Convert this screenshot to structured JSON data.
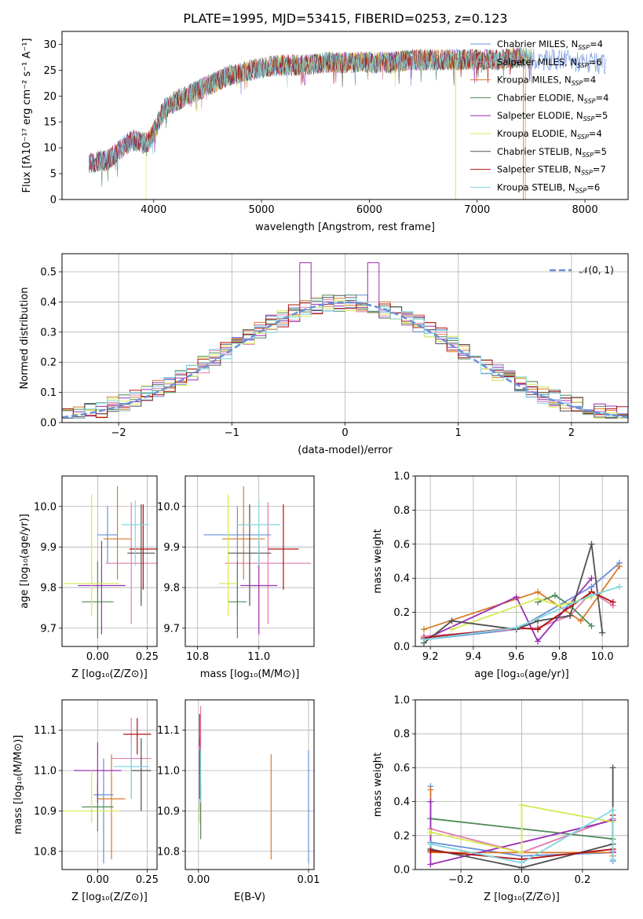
{
  "figure_title": "PLATE=1995, MJD=53415, FIBERID=0253, z=0.123",
  "colors": {
    "Chabrier MILES": "#6a8fd8",
    "Salpeter MILES": "#e07cb0",
    "Kroupa MILES": "#d77b2a",
    "Chabrier ELODIE": "#4e8a57",
    "Salpeter ELODIE": "#9a2fb4",
    "Kroupa ELODIE": "#d6e84f",
    "Chabrier STELIB": "#505050",
    "Salpeter STELIB": "#b01010",
    "Kroupa STELIB": "#7fd7e0",
    "normal_curve": "#6a8fd8",
    "grid": "#b0b0b0"
  },
  "legend_names": [
    "Chabrier MILES",
    "Salpeter MILES",
    "Kroupa MILES",
    "Chabrier ELODIE",
    "Salpeter ELODIE",
    "Kroupa ELODIE",
    "Chabrier STELIB",
    "Salpeter STELIB",
    "Kroupa STELIB"
  ],
  "legend_nssp": [
    "4",
    "6",
    "4",
    "4",
    "5",
    "4",
    "5",
    "7",
    "6"
  ],
  "legend_prefix": ", N",
  "legend_sub": "SSP",
  "legend_suffix": "=",
  "chart_data": [
    {
      "type": "line",
      "xlabel": "wavelength [Angstrom, rest frame]",
      "ylabel": "Flux [fλ10⁻¹⁷ erg cm⁻² s⁻¹ A⁻¹]",
      "xlim": [
        3150,
        8400
      ],
      "ylim": [
        0,
        32.5
      ],
      "xticks": [
        4000,
        5000,
        6000,
        7000,
        8000
      ],
      "yticks": [
        0,
        5,
        10,
        15,
        20,
        25,
        30
      ],
      "legend_position": "top-right",
      "grid": false,
      "spectrum_envelope": {
        "x": [
          3400,
          3500,
          3550,
          3600,
          3700,
          3800,
          3900,
          3950,
          4000,
          4100,
          4200,
          4300,
          4400,
          4500,
          4600,
          4700,
          4800,
          4900,
          5000,
          5200,
          5400,
          5600,
          5800,
          6000,
          6200,
          6400,
          6600,
          6800,
          7000,
          7200,
          7400,
          7600,
          7800,
          8000,
          8200
        ],
        "y": [
          7,
          7.5,
          7.5,
          8,
          10,
          11.5,
          11,
          11,
          13,
          17.5,
          19,
          20,
          21,
          22,
          23,
          24,
          24.5,
          25,
          25.5,
          26,
          26,
          26.5,
          26.5,
          26.5,
          26.5,
          27,
          27,
          27,
          27,
          27,
          27.5,
          27,
          27,
          26.5,
          26
        ]
      }
    },
    {
      "type": "bar",
      "xlabel": "(data-model)/error",
      "ylabel": "Normed distribution",
      "xlim": [
        -2.5,
        2.5
      ],
      "ylim": [
        0,
        0.56
      ],
      "xticks": [
        -2,
        -1,
        0,
        1,
        2
      ],
      "xtick_labels": [
        "−2",
        "−1",
        "0",
        "1",
        "2"
      ],
      "yticks": [
        0,
        0.1,
        0.2,
        0.3,
        0.4,
        0.5
      ],
      "ytick_labels": [
        "0.0",
        "0.1",
        "0.2",
        "0.3",
        "0.4",
        "0.5"
      ],
      "grid": true,
      "legend_label": "𝒩(0, 1)",
      "legend_position": "top-right",
      "bin_width": 0.1,
      "bin_start": -2.5,
      "normal_mean": 0,
      "normal_sigma": 1
    },
    {
      "type": "scatter",
      "xlabel": "Z [log₁₀(Z/Z⊙)]",
      "ylabel": "age  [log₁₀(age/yr)]",
      "xlim": [
        -0.18,
        0.3
      ],
      "ylim": [
        9.655,
        10.075
      ],
      "xticks": [
        0.0,
        0.25
      ],
      "xtick_labels": [
        "0.00",
        "0.25"
      ],
      "yticks": [
        9.7,
        9.8,
        9.9,
        10.0
      ],
      "ytick_labels": [
        "9.7",
        "9.8",
        "9.9",
        "10.0"
      ],
      "grid": true,
      "points": [
        {
          "x": 0.05,
          "y": 9.93,
          "xerr": 0.05,
          "yerr": [
            0.07,
            0.07
          ]
        },
        {
          "x": 0.17,
          "y": 9.86,
          "xerr": 0.13,
          "yerr": [
            0.15,
            0.15
          ]
        },
        {
          "x": 0.1,
          "y": 9.92,
          "xerr": 0.07,
          "yerr": [
            0.1,
            0.13
          ]
        },
        {
          "x": 0.0,
          "y": 9.765,
          "xerr": 0.08,
          "yerr": [
            0.09,
            0.1
          ]
        },
        {
          "x": 0.02,
          "y": 9.805,
          "xerr": 0.12,
          "yerr": [
            0.12,
            0.11
          ]
        },
        {
          "x": -0.03,
          "y": 9.81,
          "xerr": 0.14,
          "yerr": [
            0.08,
            0.22
          ]
        },
        {
          "x": 0.22,
          "y": 9.885,
          "xerr": 0.07,
          "yerr": [
            0.13,
            0.12
          ]
        },
        {
          "x": 0.23,
          "y": 9.895,
          "xerr": 0.07,
          "yerr": [
            0.1,
            0.11
          ]
        },
        {
          "x": 0.19,
          "y": 9.955,
          "xerr": 0.07,
          "yerr": [
            0.1,
            0.06
          ]
        }
      ]
    },
    {
      "type": "scatter",
      "xlabel": "mass [log₁₀(M/M⊙)]",
      "ylabel": "",
      "xlim": [
        10.76,
        11.18
      ],
      "ylim": [
        9.655,
        10.075
      ],
      "xticks": [
        10.8,
        11.0
      ],
      "xtick_labels": [
        "10.8",
        "11.0"
      ],
      "yticks": [
        9.7,
        9.8,
        9.9,
        10.0
      ],
      "ytick_labels": [
        "9.7",
        "9.8",
        "9.9",
        "10.0"
      ],
      "grid": true,
      "points": [
        {
          "x": 10.93,
          "y": 9.93,
          "xerr": 0.11,
          "yerr": [
            0.2,
            0.07
          ]
        },
        {
          "x": 11.03,
          "y": 9.86,
          "xerr": 0.14,
          "yerr": [
            0.15,
            0.15
          ]
        },
        {
          "x": 10.95,
          "y": 9.92,
          "xerr": 0.07,
          "yerr": [
            0.1,
            0.13
          ]
        },
        {
          "x": 10.93,
          "y": 9.765,
          "xerr": 0.03,
          "yerr": [
            0.09,
            0.1
          ]
        },
        {
          "x": 11.0,
          "y": 9.805,
          "xerr": 0.06,
          "yerr": [
            0.12,
            0.11
          ]
        },
        {
          "x": 10.9,
          "y": 9.81,
          "xerr": 0.03,
          "yerr": [
            0.08,
            0.22
          ]
        },
        {
          "x": 10.97,
          "y": 9.885,
          "xerr": 0.07,
          "yerr": [
            0.13,
            0.12
          ]
        },
        {
          "x": 11.08,
          "y": 9.895,
          "xerr": 0.05,
          "yerr": [
            0.1,
            0.11
          ]
        },
        {
          "x": 11.0,
          "y": 9.955,
          "xerr": 0.07,
          "yerr": [
            0.1,
            0.06
          ]
        }
      ]
    },
    {
      "type": "line",
      "xlabel": "age  [log₁₀(age/yr)]",
      "ylabel": "mass weight",
      "xlim": [
        9.13,
        10.12
      ],
      "ylim": [
        0,
        1.0
      ],
      "xticks": [
        9.2,
        9.4,
        9.6,
        9.8,
        10.0
      ],
      "xtick_labels": [
        "9.2",
        "9.4",
        "9.6",
        "9.8",
        "10.0"
      ],
      "yticks": [
        0,
        0.2,
        0.4,
        0.6,
        0.8,
        1.0
      ],
      "ytick_labels": [
        "0.0",
        "0.2",
        "0.4",
        "0.6",
        "0.8",
        "1.0"
      ],
      "grid": true,
      "series": [
        {
          "x": [
            9.17,
            9.6,
            9.95,
            10.08
          ],
          "y": [
            0.04,
            0.1,
            0.35,
            0.49
          ]
        },
        {
          "x": [
            9.17,
            9.7,
            9.85,
            9.95,
            10.05
          ],
          "y": [
            0.06,
            0.11,
            0.18,
            0.32,
            0.24
          ]
        },
        {
          "x": [
            9.17,
            9.7,
            9.9,
            10.08
          ],
          "y": [
            0.1,
            0.32,
            0.15,
            0.47
          ]
        },
        {
          "x": [
            9.7,
            9.78,
            9.85,
            9.95
          ],
          "y": [
            0.26,
            0.3,
            0.24,
            0.12
          ]
        },
        {
          "x": [
            9.17,
            9.6,
            9.7,
            9.95
          ],
          "y": [
            0.04,
            0.29,
            0.03,
            0.4
          ]
        },
        {
          "x": [
            9.3,
            9.7,
            9.8,
            9.95
          ],
          "y": [
            0.1,
            0.28,
            0.24,
            0.29
          ]
        },
        {
          "x": [
            9.17,
            9.3,
            9.6,
            9.7,
            9.85,
            9.95,
            10.0
          ],
          "y": [
            0.02,
            0.15,
            0.1,
            0.15,
            0.18,
            0.6,
            0.08
          ]
        },
        {
          "x": [
            9.17,
            9.6,
            9.7,
            9.95,
            10.05
          ],
          "y": [
            0.05,
            0.11,
            0.1,
            0.32,
            0.26
          ]
        },
        {
          "x": [
            9.17,
            9.6,
            9.95,
            10.08
          ],
          "y": [
            0.04,
            0.11,
            0.3,
            0.35
          ]
        }
      ]
    },
    {
      "type": "scatter",
      "xlabel": "Z [log₁₀(Z/Z⊙)]",
      "ylabel": "mass [log₁₀(M/M⊙)]",
      "xlim": [
        -0.18,
        0.3
      ],
      "ylim": [
        10.755,
        11.175
      ],
      "xticks": [
        0.0,
        0.25
      ],
      "xtick_labels": [
        "0.00",
        "0.25"
      ],
      "yticks": [
        10.8,
        10.9,
        11.0,
        11.1
      ],
      "ytick_labels": [
        "10.8",
        "10.9",
        "11.0",
        "11.1"
      ],
      "grid": true,
      "points": [
        {
          "x": 0.03,
          "y": 10.94,
          "xerr": 0.05,
          "yerr": [
            0.17,
            0.09
          ]
        },
        {
          "x": 0.17,
          "y": 11.03,
          "xerr": 0.1,
          "yerr": [
            0.1,
            0.1
          ]
        },
        {
          "x": 0.07,
          "y": 10.93,
          "xerr": 0.07,
          "yerr": [
            0.15,
            0.11
          ]
        },
        {
          "x": 0.0,
          "y": 10.91,
          "xerr": 0.08,
          "yerr": [
            0.06,
            0.06
          ]
        },
        {
          "x": 0.0,
          "y": 11.0,
          "xerr": 0.12,
          "yerr": [
            0.08,
            0.07
          ]
        },
        {
          "x": -0.03,
          "y": 10.9,
          "xerr": 0.14,
          "yerr": [
            0.03,
            0.1
          ]
        },
        {
          "x": 0.22,
          "y": 11.0,
          "xerr": 0.05,
          "yerr": [
            0.1,
            0.08
          ]
        },
        {
          "x": 0.2,
          "y": 11.09,
          "xerr": 0.07,
          "yerr": [
            0.05,
            0.04
          ]
        },
        {
          "x": 0.17,
          "y": 11.01,
          "xerr": 0.09,
          "yerr": [
            0.08,
            0.06
          ]
        }
      ]
    },
    {
      "type": "scatter",
      "xlabel": "E(B-V)",
      "ylabel": "",
      "xlim": [
        -0.0012,
        0.0105
      ],
      "ylim": [
        10.755,
        11.175
      ],
      "xticks": [
        0.0,
        0.01
      ],
      "xtick_labels": [
        "0.00",
        "0.01"
      ],
      "yticks": [
        10.8,
        10.9,
        11.0,
        11.1
      ],
      "ytick_labels": [
        "10.8",
        "10.9",
        "11.0",
        "11.1"
      ],
      "grid": true,
      "points": [
        {
          "x": 0.01,
          "y": 10.94,
          "xerr": 0,
          "yerr": [
            0.17,
            0.11
          ]
        },
        {
          "x": 0.0002,
          "y": 11.09,
          "xerr": 0,
          "yerr": [
            0.05,
            0.07
          ]
        },
        {
          "x": 0.0066,
          "y": 10.93,
          "xerr": 0,
          "yerr": [
            0.15,
            0.11
          ]
        },
        {
          "x": 0.0002,
          "y": 10.91,
          "xerr": 0,
          "yerr": [
            0.08,
            0.06
          ]
        },
        {
          "x": 0.0001,
          "y": 11.0,
          "xerr": 0,
          "yerr": [
            0.1,
            0.08
          ]
        },
        {
          "x": 0.0001,
          "y": 10.93,
          "xerr": 0,
          "yerr": [
            0.06,
            0.06
          ]
        },
        {
          "x": 0.0001,
          "y": 10.99,
          "xerr": 0,
          "yerr": [
            0.06,
            0.06
          ]
        },
        {
          "x": 0.0001,
          "y": 11.1,
          "xerr": 0,
          "yerr": [
            0.04,
            0.04
          ]
        },
        {
          "x": 0.0002,
          "y": 10.98,
          "xerr": 0,
          "yerr": [
            0.06,
            0.07
          ]
        }
      ]
    },
    {
      "type": "line",
      "xlabel": "Z [log₁₀(Z/Z⊙)]",
      "ylabel": "mass weight",
      "xlim": [
        -0.35,
        0.35
      ],
      "ylim": [
        0,
        1.0
      ],
      "xticks": [
        -0.2,
        0.0,
        0.2
      ],
      "xtick_labels": [
        "−0.2",
        "0.0",
        "0.2"
      ],
      "yticks": [
        0,
        0.2,
        0.4,
        0.6,
        0.8,
        1.0
      ],
      "ytick_labels": [
        "0.0",
        "0.2",
        "0.4",
        "0.6",
        "0.8",
        "1.0"
      ],
      "grid": true,
      "series": [
        {
          "x": [
            -0.3,
            -0.3,
            0.0,
            0.3,
            0.3
          ],
          "y": [
            0.49,
            0.16,
            0.08,
            0.1,
            0.05
          ]
        },
        {
          "x": [
            -0.3,
            0.0,
            0.3,
            0.3
          ],
          "y": [
            0.24,
            0.1,
            0.3,
            0.11
          ]
        },
        {
          "x": [
            -0.3,
            -0.3,
            0.3,
            0.3
          ],
          "y": [
            0.47,
            0.1,
            0.1,
            0.08
          ]
        },
        {
          "x": [
            -0.3,
            0.3,
            0.3
          ],
          "y": [
            0.3,
            0.18,
            0.1
          ]
        },
        {
          "x": [
            -0.3,
            -0.3,
            0.3,
            0.3
          ],
          "y": [
            0.4,
            0.03,
            0.29,
            0.1
          ]
        },
        {
          "x": [
            -0.3,
            0.0,
            0.0,
            0.3
          ],
          "y": [
            0.22,
            0.1,
            0.38,
            0.28
          ]
        },
        {
          "x": [
            -0.3,
            0.0,
            0.3,
            0.3
          ],
          "y": [
            0.12,
            0.01,
            0.15,
            0.6
          ]
        },
        {
          "x": [
            -0.3,
            0.0,
            0.3,
            0.3
          ],
          "y": [
            0.11,
            0.06,
            0.12,
            0.32
          ]
        },
        {
          "x": [
            -0.3,
            0.0,
            0.3,
            0.3
          ],
          "y": [
            0.15,
            0.04,
            0.35,
            0.06
          ]
        }
      ]
    }
  ]
}
